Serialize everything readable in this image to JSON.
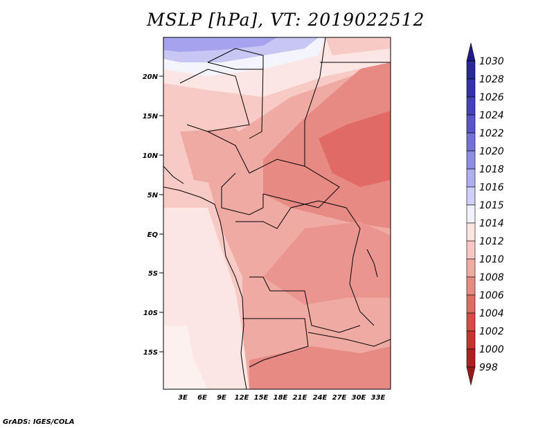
{
  "title": "MSLP [hPa], VT: 2019022512",
  "credit": "GrADS: IGES/COLA",
  "lat_labels": [
    "20N",
    "15N",
    "10N",
    "5N",
    "EQ",
    "5S",
    "10S",
    "15S"
  ],
  "lon_labels": [
    "3E",
    "6E",
    "9E",
    "12E",
    "15E",
    "18E",
    "21E",
    "24E",
    "27E",
    "30E",
    "33E"
  ],
  "colorbar": {
    "levels": [
      "1030",
      "1028",
      "1026",
      "1024",
      "1022",
      "1020",
      "1018",
      "1016",
      "1015",
      "1014",
      "1012",
      "1010",
      "1008",
      "1006",
      "1004",
      "1002",
      "1000",
      "998"
    ],
    "colors": [
      "#1e1a8a",
      "#2a279e",
      "#3430b0",
      "#4440c0",
      "#5855cf",
      "#7470dc",
      "#908ce6",
      "#b0aef0",
      "#d0cff7",
      "#f2f2fc",
      "#fbe6e3",
      "#f7cac5",
      "#f0aaa4",
      "#e88a84",
      "#e06a64",
      "#d84a45",
      "#c83330",
      "#b02222",
      "#981a1a"
    ]
  }
}
